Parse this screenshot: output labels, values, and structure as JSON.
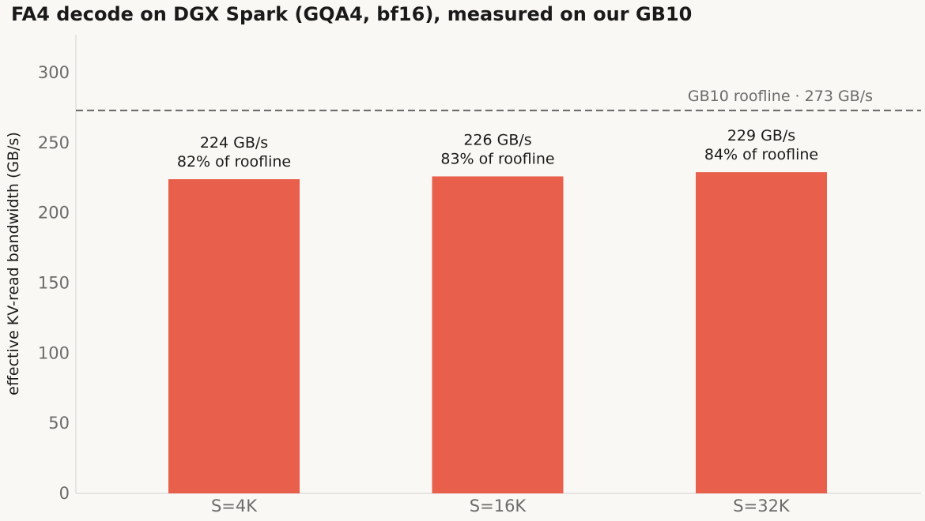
{
  "chart_data": {
    "type": "bar",
    "title": "FA4 decode on DGX Spark (GQA4, bf16), measured on our GB10",
    "xlabel": "",
    "ylabel": "effective KV-read bandwidth (GB/s)",
    "categories": [
      "S=4K",
      "S=16K",
      "S=32K"
    ],
    "values": [
      224,
      226,
      229
    ],
    "bar_labels": [
      [
        "224 GB/s",
        "82% of roofline"
      ],
      [
        "226 GB/s",
        "83% of roofline"
      ],
      [
        "229 GB/s",
        "84% of roofline"
      ]
    ],
    "ylim": [
      0,
      327
    ],
    "yticks": [
      0,
      50,
      100,
      150,
      200,
      250,
      300
    ],
    "reference_line": {
      "value": 273,
      "label": "GB10 roofline · 273 GB/s",
      "style": "dashed"
    },
    "grid": false,
    "legend": "none",
    "colors": {
      "bar": "#e8604c",
      "reference": "#6e6e6e",
      "axis": "#d9d9d9"
    }
  }
}
